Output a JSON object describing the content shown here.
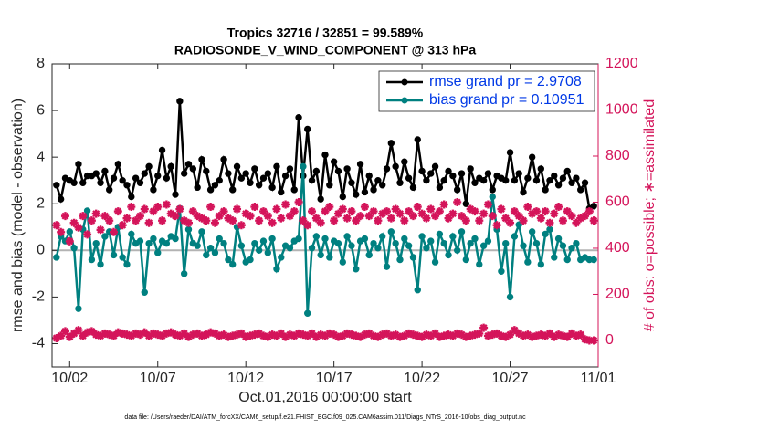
{
  "chart_data": {
    "type": "line",
    "title": "Tropics 32716 / 32851 = 99.589%",
    "subtitle": "RADIOSONDE_V_WIND_COMPONENT @ 313 hPa",
    "xlabel": "Oct.01,2016 00:00:00 start",
    "ylabel": "rmse and bias (model - observation)",
    "y2label": "# of obs: o=possible; ∗=assimilated",
    "footnote": "data file: /Users/raeder/DAI/ATM_forcXX/CAM6_setup/f.e21.FHIST_BGC.f09_025.CAM6assim.011/Diags_NTrS_2016-10/obs_diag_output.nc",
    "legend": "upper right",
    "xlim": [
      0,
      31
    ],
    "xticks": [
      {
        "value": 1,
        "label": "10/02"
      },
      {
        "value": 6,
        "label": "10/07"
      },
      {
        "value": 11,
        "label": "10/12"
      },
      {
        "value": 16,
        "label": "10/17"
      },
      {
        "value": 21,
        "label": "10/22"
      },
      {
        "value": 26,
        "label": "10/27"
      },
      {
        "value": 31,
        "label": "11/01"
      }
    ],
    "ylim": [
      -5,
      8
    ],
    "yticks": [
      -4,
      -2,
      0,
      2,
      4,
      6,
      8
    ],
    "y2lim": [
      -115,
      1200
    ],
    "y2ticks": [
      0,
      200,
      400,
      600,
      800,
      1000,
      1200
    ],
    "x": [
      0.25,
      0.5,
      0.75,
      1,
      1.25,
      1.5,
      1.75,
      2,
      2.25,
      2.5,
      2.75,
      3,
      3.25,
      3.5,
      3.75,
      4,
      4.25,
      4.5,
      4.75,
      5,
      5.25,
      5.5,
      5.75,
      6,
      6.25,
      6.5,
      6.75,
      7,
      7.25,
      7.5,
      7.75,
      8,
      8.25,
      8.5,
      8.75,
      9,
      9.25,
      9.5,
      9.75,
      10,
      10.25,
      10.5,
      10.75,
      11,
      11.25,
      11.5,
      11.75,
      12,
      12.25,
      12.5,
      12.75,
      13,
      13.25,
      13.5,
      13.75,
      14,
      14.25,
      14.5,
      14.75,
      15,
      15.25,
      15.5,
      15.75,
      16,
      16.25,
      16.5,
      16.75,
      17,
      17.25,
      17.5,
      17.75,
      18,
      18.25,
      18.5,
      18.75,
      19,
      19.25,
      19.5,
      19.75,
      20,
      20.25,
      20.5,
      20.75,
      21,
      21.25,
      21.5,
      21.75,
      22,
      22.25,
      22.5,
      22.75,
      23,
      23.25,
      23.5,
      23.75,
      24,
      24.25,
      24.5,
      24.75,
      25,
      25.25,
      25.5,
      25.75,
      26,
      26.25,
      26.5,
      26.75,
      27,
      27.25,
      27.5,
      27.75,
      28,
      28.25,
      28.5,
      28.75,
      29,
      29.25,
      29.5,
      29.75,
      30,
      30.25,
      30.5,
      30.75
    ],
    "series": [
      {
        "name": "rmse grand pr = 2.9708",
        "color": "#000000",
        "marker": "circle",
        "values": [
          2.8,
          2.2,
          3.1,
          3.0,
          2.9,
          3.7,
          2.9,
          3.2,
          3.2,
          3.3,
          2.9,
          3.4,
          2.6,
          3.1,
          3.7,
          3.0,
          2.8,
          2.3,
          3.1,
          2.9,
          3.3,
          3.6,
          2.6,
          3.2,
          4.3,
          3.1,
          3.6,
          2.4,
          6.4,
          3.3,
          3.7,
          3.5,
          2.7,
          3.9,
          3.4,
          2.6,
          2.8,
          3.0,
          3.9,
          3.3,
          2.6,
          3.6,
          3.1,
          3.3,
          2.9,
          3.5,
          2.8,
          3.1,
          3.3,
          2.7,
          3.6,
          2.5,
          3.2,
          3.5,
          2.6,
          5.7,
          3.2,
          5.2,
          3.0,
          3.4,
          2.2,
          4.1,
          2.8,
          3.8,
          3.4,
          2.3,
          3.5,
          2.9,
          2.4,
          3.7,
          2.5,
          3.2,
          2.6,
          3.0,
          2.8,
          3.5,
          4.6,
          3.6,
          2.9,
          3.8,
          3.1,
          2.7,
          4.75,
          3.4,
          3.0,
          3.3,
          3.6,
          2.7,
          3.0,
          3.4,
          3.2,
          2.6,
          3.3,
          2.0,
          3.5,
          2.9,
          3.1,
          3.0,
          3.3,
          2.6,
          3.2,
          3.1,
          3.0,
          4.2,
          3.0,
          3.3,
          2.5,
          3.1,
          4.0,
          3.0,
          3.5,
          2.6,
          3.0,
          3.2,
          2.8,
          3.1,
          3.4,
          2.9,
          3.1,
          2.6,
          2.9,
          1.8,
          1.9
        ]
      },
      {
        "name": "bias grand pr = 0.10951",
        "color": "#008080",
        "marker": "circle",
        "values": [
          -0.3,
          0.6,
          0.4,
          0.8,
          0.1,
          -2.5,
          0.9,
          1.7,
          -0.4,
          0.3,
          -0.6,
          0.6,
          0.8,
          -0.2,
          1.0,
          -0.3,
          -0.6,
          0.7,
          0.3,
          0.4,
          -1.8,
          0.3,
          0.5,
          -0.1,
          0.4,
          0.3,
          0.6,
          0.5,
          1.8,
          -1.0,
          0.9,
          0.3,
          0.2,
          0.8,
          -0.2,
          0.1,
          -0.1,
          0.5,
          0.3,
          -0.4,
          -0.6,
          1.0,
          0.2,
          -0.5,
          -0.4,
          0.3,
          0.0,
          0.4,
          -0.1,
          0.5,
          -0.8,
          -0.3,
          0.2,
          0.1,
          0.4,
          0.5,
          3.6,
          -2.7,
          0.1,
          0.6,
          -0.2,
          0.5,
          -0.3,
          0.4,
          0.3,
          -0.5,
          0.6,
          0.2,
          -0.8,
          0.4,
          0.5,
          -0.2,
          0.3,
          0.1,
          0.6,
          -0.7,
          0.8,
          0.3,
          -0.4,
          0.5,
          0.2,
          -0.3,
          -1.7,
          0.6,
          0.1,
          0.4,
          -0.5,
          0.7,
          0.3,
          -0.2,
          0.6,
          0.0,
          0.8,
          -0.4,
          0.3,
          0.5,
          -0.6,
          0.2,
          0.4,
          2.3,
          0.9,
          -0.9,
          0.3,
          -2.0,
          0.6,
          1.1,
          0.2,
          -0.5,
          0.8,
          0.3,
          -0.6,
          0.7,
          0.9,
          -0.3,
          0.5,
          0.2,
          -0.4,
          0.1,
          0.3,
          -0.4,
          -0.3,
          -0.4,
          -0.4
        ]
      },
      {
        "color": "#d4145a",
        "marker": "star",
        "axis": "y2",
        "values": [
          500,
          470,
          540,
          430,
          510,
          490,
          540,
          460,
          520,
          550,
          480,
          540,
          520,
          470,
          560,
          500,
          530,
          580,
          520,
          540,
          570,
          510,
          560,
          580,
          520,
          590,
          550,
          540,
          570,
          520,
          510,
          560,
          540,
          530,
          520,
          580,
          510,
          540,
          560,
          530,
          520,
          570,
          500,
          550,
          540,
          580,
          520,
          560,
          540,
          510,
          570,
          530,
          590,
          540,
          560,
          600,
          520,
          500,
          560,
          530,
          510,
          560,
          580,
          520,
          550,
          570,
          530,
          560,
          520,
          540,
          580,
          540,
          560,
          520,
          550,
          560,
          530,
          570,
          550,
          520,
          560,
          540,
          580,
          550,
          530,
          570,
          540,
          560,
          590,
          530,
          550,
          600,
          540,
          520,
          570,
          560,
          520,
          550,
          590,
          540,
          500,
          570,
          530,
          510,
          560,
          540,
          520,
          580,
          550,
          560,
          530,
          560,
          510,
          550,
          580,
          520,
          560,
          540,
          510,
          530,
          540,
          560,
          520
        ]
      },
      {
        "color": "#d4145a",
        "marker": "star",
        "axis": "y2",
        "values": [
          10,
          20,
          40,
          15,
          30,
          45,
          20,
          35,
          40,
          25,
          20,
          30,
          25,
          20,
          35,
          30,
          25,
          20,
          30,
          25,
          35,
          20,
          30,
          25,
          20,
          30,
          35,
          25,
          20,
          30,
          15,
          25,
          30,
          20,
          25,
          35,
          30,
          20,
          25,
          15,
          20,
          25,
          30,
          15,
          20,
          25,
          30,
          20,
          15,
          25,
          20,
          30,
          15,
          25,
          20,
          30,
          25,
          20,
          30,
          15,
          25,
          20,
          30,
          25,
          15,
          20,
          30,
          25,
          20,
          15,
          25,
          30,
          20,
          15,
          25,
          30,
          20,
          25,
          15,
          20,
          30,
          25,
          20,
          15,
          25,
          20,
          30,
          15,
          20,
          25,
          20,
          30,
          25,
          15,
          20,
          25,
          30,
          55,
          20,
          25,
          30,
          20,
          15,
          25,
          45,
          30,
          20,
          25,
          15,
          20,
          25,
          20,
          30,
          15,
          25,
          20,
          15,
          30,
          20,
          25,
          5,
          0,
          0
        ]
      }
    ],
    "legend_text_color": "#0039e6",
    "reference_line_color": "#b3b3b3"
  }
}
